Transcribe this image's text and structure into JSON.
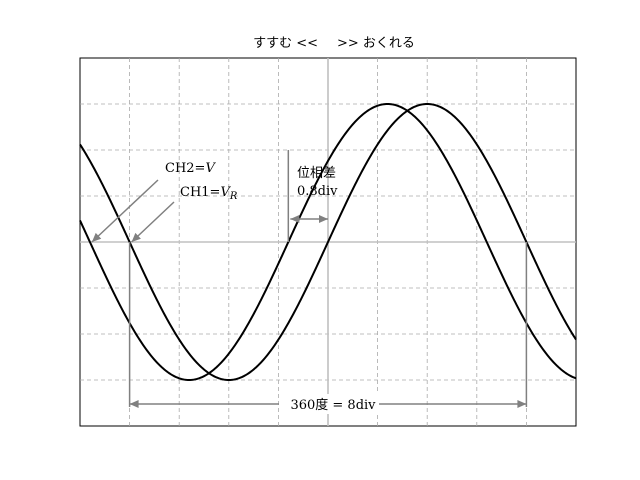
{
  "header": {
    "advance_label": "すすむ <<",
    "lag_label": ">> おくれる"
  },
  "screen": {
    "divisions_x": 10,
    "divisions_y": 8,
    "grid": true
  },
  "annotations": {
    "ch2_prefix": "CH2=",
    "ch2_var": "V",
    "ch1_prefix": "CH1=",
    "ch1_var": "V",
    "ch1_sub": "R",
    "phase_title": "位相差",
    "phase_value": "0.8div",
    "period_label": "360度 = 8div"
  },
  "chart_data": {
    "type": "line",
    "x_range": [
      0,
      10
    ],
    "y_range": [
      -4,
      4
    ],
    "series": [
      {
        "period_div": 8,
        "amplitude_div": 3,
        "zero_cross_div": 1.0
      },
      {
        "period_div": 8,
        "amplitude_div": 3,
        "zero_cross_div": 0.2
      }
    ],
    "phase_difference_div": 0.8,
    "period_div": 8,
    "colors": {
      "trace": "#000000",
      "grid": "#aaaaaa",
      "axis": "#c0c0c0",
      "annotation": "#808080"
    }
  }
}
